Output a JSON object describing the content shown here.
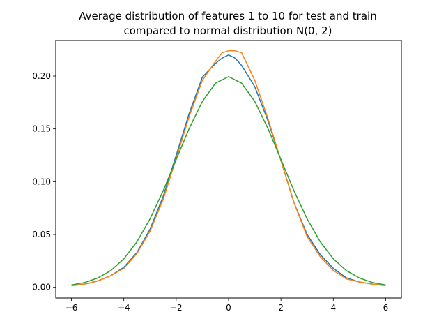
{
  "chart_data": {
    "type": "line",
    "title": "Average distribution of features 1 to 10 for test and train",
    "subtitle": "compared to normal distribution N(0, 2)",
    "xlabel": "",
    "ylabel": "",
    "xlim": [
      -6.6,
      6.6
    ],
    "ylim": [
      -0.0101,
      0.2337
    ],
    "xticks": [
      -6,
      -4,
      -2,
      0,
      2,
      4,
      6
    ],
    "xtick_labels": [
      "−6",
      "−4",
      "−2",
      "0",
      "2",
      "4",
      "6"
    ],
    "yticks": [
      0.0,
      0.05,
      0.1,
      0.15,
      0.2
    ],
    "ytick_labels": [
      "0.00",
      "0.05",
      "0.10",
      "0.15",
      "0.20"
    ],
    "grid": false,
    "legend": "none",
    "series": [
      {
        "color": "#1f77b4",
        "x": [
          -6,
          -5.5,
          -5,
          -4.5,
          -4,
          -3.5,
          -3,
          -2.5,
          -2,
          -1.5,
          -1,
          -0.5,
          -0.25,
          0,
          0.25,
          0.5,
          1,
          1.5,
          2,
          2.5,
          3,
          3.5,
          4,
          4.5,
          5,
          5.5,
          6
        ],
        "y": [
          0.0015,
          0.003,
          0.006,
          0.011,
          0.019,
          0.033,
          0.055,
          0.086,
          0.125,
          0.165,
          0.199,
          0.212,
          0.217,
          0.22,
          0.217,
          0.21,
          0.19,
          0.158,
          0.12,
          0.08,
          0.05,
          0.031,
          0.018,
          0.009,
          0.005,
          0.003,
          0.0015
        ]
      },
      {
        "color": "#ff7f0e",
        "x": [
          -6,
          -5.5,
          -5,
          -4.5,
          -4,
          -3.5,
          -3,
          -2.5,
          -2,
          -1.5,
          -1,
          -0.5,
          -0.25,
          0,
          0.25,
          0.5,
          1,
          1.5,
          2,
          2.5,
          3,
          3.5,
          4,
          4.5,
          5,
          5.5,
          6
        ],
        "y": [
          0.0015,
          0.003,
          0.006,
          0.011,
          0.018,
          0.032,
          0.053,
          0.083,
          0.122,
          0.162,
          0.196,
          0.214,
          0.222,
          0.224,
          0.224,
          0.222,
          0.196,
          0.16,
          0.12,
          0.08,
          0.048,
          0.029,
          0.016,
          0.008,
          0.005,
          0.003,
          0.0015
        ]
      },
      {
        "color": "#2ca02c",
        "x": [
          -6,
          -5.5,
          -5,
          -4.5,
          -4,
          -3.5,
          -3,
          -2.5,
          -2,
          -1.5,
          -1,
          -0.5,
          0,
          0.5,
          1,
          1.5,
          2,
          2.5,
          3,
          3.5,
          4,
          4.5,
          5,
          5.5,
          6
        ],
        "y": [
          0.0022,
          0.0045,
          0.0088,
          0.0158,
          0.027,
          0.0431,
          0.0648,
          0.0913,
          0.121,
          0.1506,
          0.176,
          0.1933,
          0.1995,
          0.1933,
          0.176,
          0.1506,
          0.121,
          0.0913,
          0.0648,
          0.0431,
          0.027,
          0.0158,
          0.0088,
          0.0045,
          0.0022
        ]
      }
    ]
  }
}
